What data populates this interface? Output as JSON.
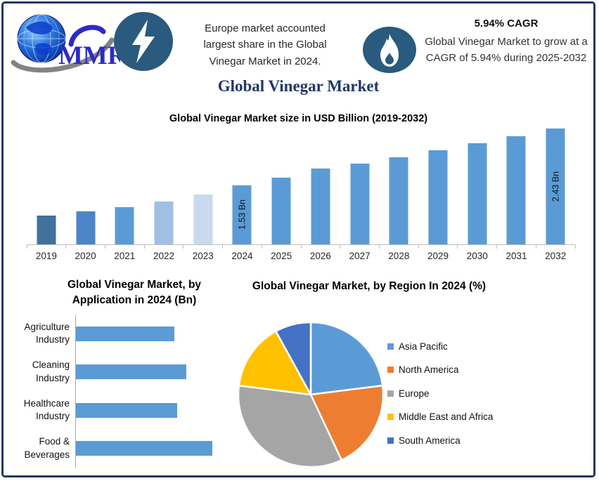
{
  "page_title": "Global Vinegar Market",
  "header": {
    "logo_text": "MMR",
    "highlight_left": "Europe market accounted largest share in the Global Vinegar Market in 2024.",
    "cagr_title": "5.94% CAGR",
    "cagr_text": "Global Vinegar Market to grow at a CAGR of 5.94% during 2025-2032"
  },
  "colors": {
    "border_navy": "#1F3864",
    "title_navy": "#1F3864",
    "icon_badge_blue": "#2A5A7E",
    "logo_blue": "#2B2BC8",
    "primary_bar_blue": "#5B9BD5",
    "axis_gray": "#BFBFBF"
  },
  "chart_data": [
    {
      "type": "bar",
      "title": "Global Vinegar Market size in USD Billion (2019-2032)",
      "unit": "USD Billion",
      "categories": [
        "2019",
        "2020",
        "2021",
        "2022",
        "2023",
        "2024",
        "2025",
        "2026",
        "2027",
        "2028",
        "2029",
        "2030",
        "2031",
        "2032"
      ],
      "values": [
        1.05,
        1.12,
        1.19,
        1.28,
        1.39,
        1.53,
        1.65,
        1.8,
        1.87,
        1.98,
        2.09,
        2.2,
        2.31,
        2.43
      ],
      "values_estimated": true,
      "labeled_points": {
        "2024": "1.53 Bn",
        "2032": "2.43 Bn"
      },
      "bar_labels": [
        "",
        "",
        "",
        "",
        "",
        "1.53 Bn",
        "",
        "",
        "",
        "",
        "",
        "",
        "",
        "2.43 Bn"
      ],
      "bar_colors": [
        "#41719C",
        "#4C86C6",
        "#5B9BD5",
        "#A0BFE4",
        "#C9D9EE",
        "#5B9BD5",
        "#5B9BD5",
        "#5B9BD5",
        "#5B9BD5",
        "#5B9BD5",
        "#5B9BD5",
        "#5B9BD5",
        "#5B9BD5",
        "#5B9BD5"
      ],
      "gridlines": false,
      "legend": "none"
    },
    {
      "type": "bar",
      "orientation": "horizontal",
      "title": "Global Vinegar Market, by Application in 2024 (Bn)",
      "categories": [
        "Agriculture Industry",
        "Cleaning Industry",
        "Healthcare Industry",
        "Food & Beverages"
      ],
      "values_pct_of_max": [
        72,
        81,
        74,
        100
      ],
      "values_estimated": true,
      "bar_color": "#5B9BD5",
      "gridlines": false,
      "legend": "none"
    },
    {
      "type": "pie",
      "title": "Global Vinegar Market, by Region In 2024 (%)",
      "labels": [
        "Asia Pacific",
        "North America",
        "Europe",
        "Middle East and Africa",
        "South America"
      ],
      "values": [
        23,
        20,
        34,
        15,
        8
      ],
      "values_estimated": true,
      "colors": [
        "#5B9BD5",
        "#ED7D31",
        "#A5A5A5",
        "#FFC000",
        "#4472C4"
      ],
      "legend_position": "right"
    }
  ]
}
